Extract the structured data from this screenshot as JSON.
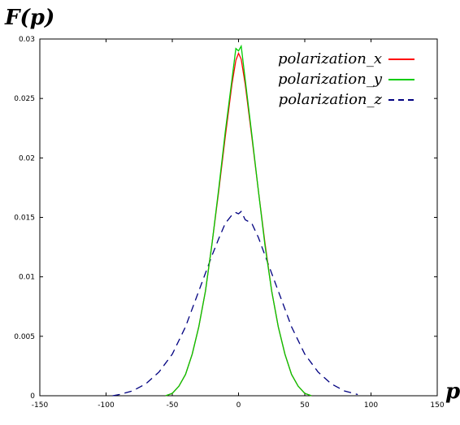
{
  "chart_data": {
    "type": "line",
    "title": "",
    "ylabel": "F(p)",
    "xlabel": "p",
    "xlim": [
      -150,
      150
    ],
    "ylim": [
      0,
      0.03
    ],
    "x_ticks": [
      "-150",
      "-100",
      "-50",
      "0",
      "50",
      "100",
      "150"
    ],
    "y_ticks": [
      "0",
      "0.005",
      "0.01",
      "0.015",
      "0.02",
      "0.025",
      "0.03"
    ],
    "grid": false,
    "legend_position": "top-right",
    "series": [
      {
        "name": "polarization_x",
        "color": "#ff0000",
        "style": "solid",
        "x": [
          -55,
          -50,
          -45,
          -40,
          -35,
          -30,
          -25,
          -20,
          -15,
          -10,
          -5,
          -2,
          0,
          2,
          5,
          10,
          15,
          20,
          25,
          30,
          35,
          40,
          45,
          50,
          55
        ],
        "y": [
          0.0,
          0.0002,
          0.0008,
          0.0018,
          0.0035,
          0.0058,
          0.0088,
          0.0128,
          0.0172,
          0.0218,
          0.0262,
          0.0282,
          0.0288,
          0.0283,
          0.0262,
          0.0218,
          0.0172,
          0.0128,
          0.0088,
          0.0058,
          0.0035,
          0.0018,
          0.0008,
          0.0002,
          0.0
        ]
      },
      {
        "name": "polarization_y",
        "color": "#00cc00",
        "style": "solid",
        "x": [
          -55,
          -50,
          -45,
          -40,
          -35,
          -30,
          -25,
          -20,
          -15,
          -10,
          -5,
          -2,
          0,
          2,
          5,
          10,
          15,
          20,
          25,
          30,
          35,
          40,
          45,
          50,
          55
        ],
        "y": [
          0.0,
          0.0002,
          0.0008,
          0.0018,
          0.0035,
          0.0058,
          0.0088,
          0.0128,
          0.0174,
          0.0222,
          0.0266,
          0.0292,
          0.029,
          0.0294,
          0.0266,
          0.022,
          0.0172,
          0.0126,
          0.0088,
          0.0058,
          0.0035,
          0.0018,
          0.0008,
          0.0002,
          0.0
        ]
      },
      {
        "name": "polarization_z",
        "color": "#000080",
        "style": "dashed",
        "x": [
          -95,
          -90,
          -80,
          -70,
          -60,
          -50,
          -40,
          -30,
          -20,
          -15,
          -10,
          -5,
          -2,
          0,
          2,
          5,
          10,
          15,
          20,
          30,
          40,
          50,
          60,
          70,
          80,
          90
        ],
        "y": [
          0.0,
          0.0001,
          0.0004,
          0.001,
          0.002,
          0.0035,
          0.0058,
          0.0088,
          0.0118,
          0.0132,
          0.0145,
          0.0152,
          0.0154,
          0.0153,
          0.0155,
          0.0148,
          0.0145,
          0.0133,
          0.0118,
          0.0088,
          0.0058,
          0.0035,
          0.002,
          0.001,
          0.0004,
          0.0001
        ]
      }
    ]
  }
}
